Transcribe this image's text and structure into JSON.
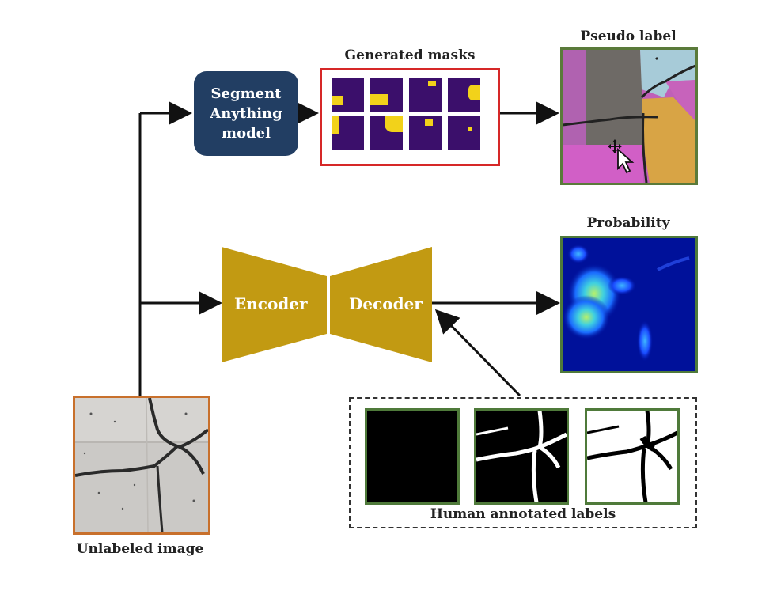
{
  "diagram": {
    "sam_block": {
      "lines": [
        "Segment",
        "Anything",
        "model"
      ]
    },
    "generated_masks": {
      "title": "Generated masks"
    },
    "pseudo_label": {
      "title": "Pseudo label"
    },
    "probability": {
      "title": "Probability"
    },
    "encoder": {
      "label": "Encoder"
    },
    "decoder": {
      "label": "Decoder"
    },
    "unlabeled_image": {
      "title": "Unlabeled image"
    },
    "human_labels": {
      "title": "Human annotated labels"
    }
  },
  "colors": {
    "sam_block": "#223e63",
    "encoder_decoder": "#c29a12",
    "masks_border": "#d62828",
    "mask_bg": "#3b0f6b",
    "mask_fg": "#f2d21a",
    "image_border_green": "#5a7a3a",
    "unlabeled_border": "#c8702c",
    "probability_border": "#4f7a3a"
  },
  "icons": [
    "mouse-cursor-icon",
    "move-cursor-icon"
  ]
}
